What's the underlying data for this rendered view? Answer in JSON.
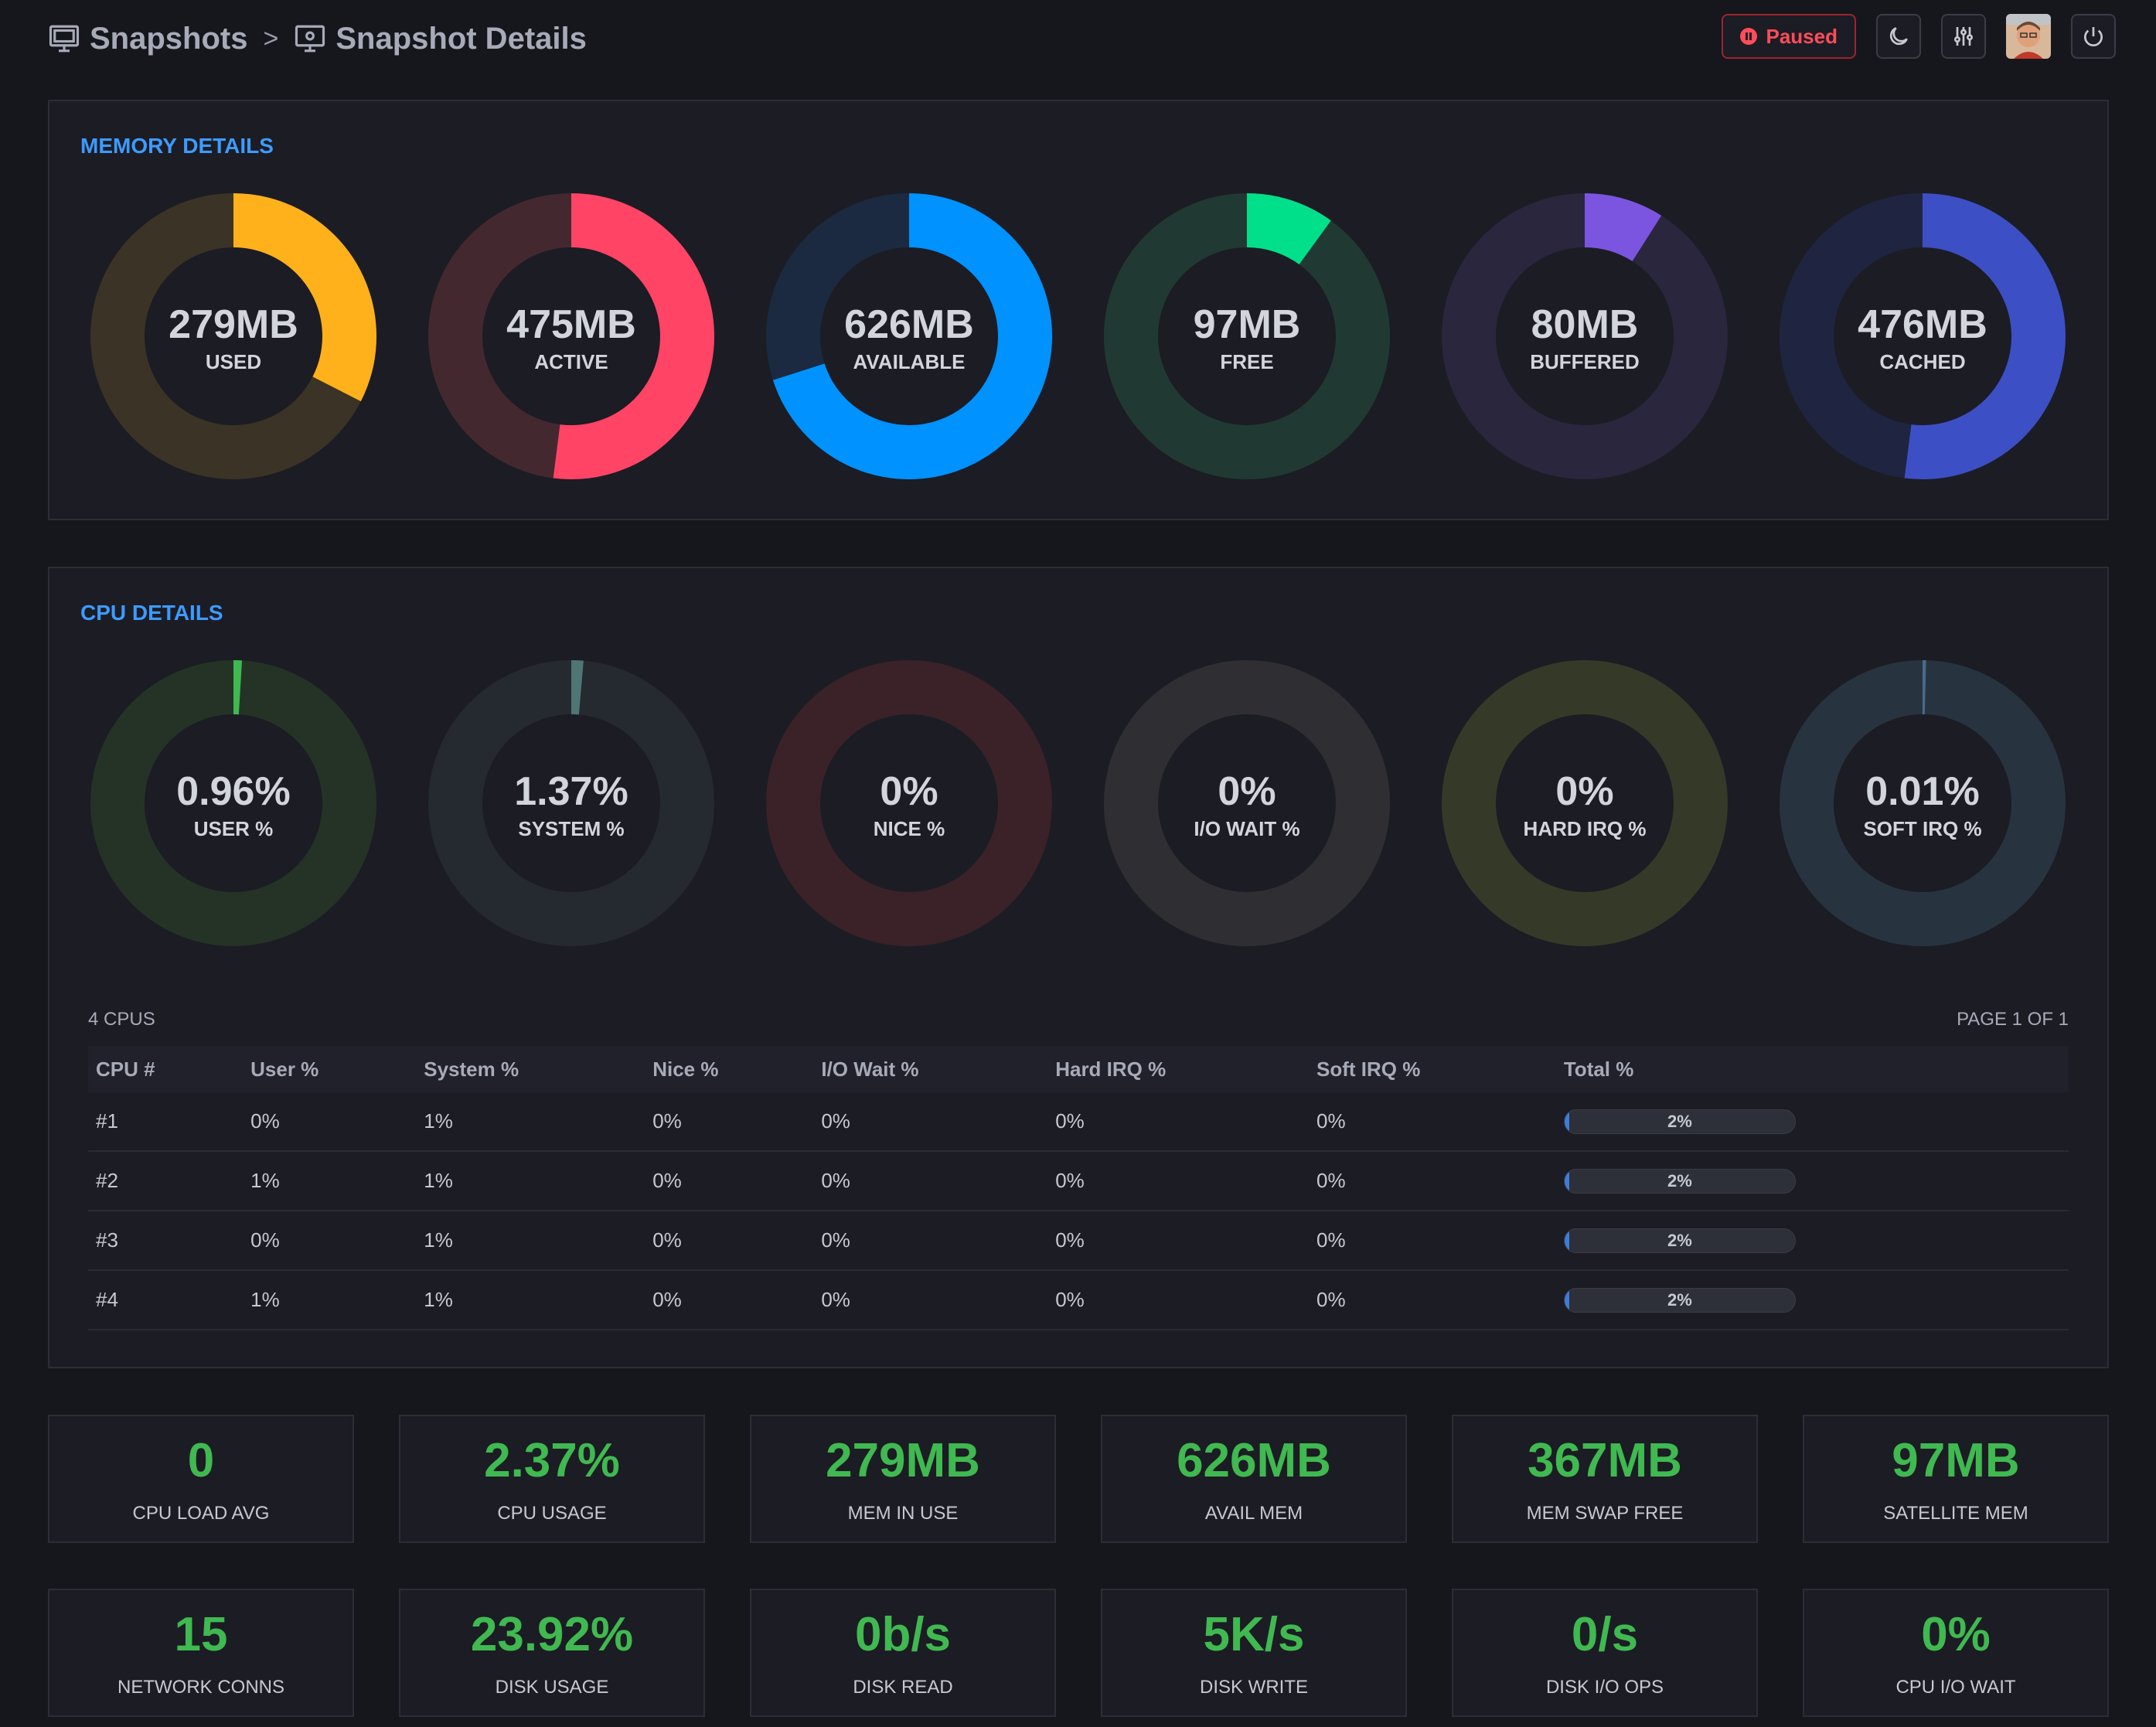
{
  "breadcrumb": {
    "root": "Snapshots",
    "separator": ">",
    "current": "Snapshot Details"
  },
  "header": {
    "status_label": "Paused",
    "icons": [
      "pause-circle-icon",
      "moon-icon",
      "sliders-icon",
      "power-icon"
    ]
  },
  "memory": {
    "title": "MEMORY DETAILS",
    "gauges": [
      {
        "value": "279MB",
        "label": "USED",
        "fraction": 0.325,
        "color": "#ffb11b",
        "track": "#3b3325"
      },
      {
        "value": "475MB",
        "label": "ACTIVE",
        "fraction": 0.52,
        "color": "#ff4466",
        "track": "#442830"
      },
      {
        "value": "626MB",
        "label": "AVAILABLE",
        "fraction": 0.7,
        "color": "#0092ff",
        "track": "#1b2a40"
      },
      {
        "value": "97MB",
        "label": "FREE",
        "fraction": 0.1,
        "color": "#00e08a",
        "track": "#203a33"
      },
      {
        "value": "80MB",
        "label": "BUFFERED",
        "fraction": 0.09,
        "color": "#7b55e0",
        "track": "#2a263d"
      },
      {
        "value": "476MB",
        "label": "CACHED",
        "fraction": 0.52,
        "color": "#3d4fc4",
        "track": "#1f2540"
      }
    ]
  },
  "cpu": {
    "title": "CPU DETAILS",
    "gauges": [
      {
        "value": "0.96%",
        "label": "USER %",
        "fraction": 0.0096,
        "color": "#3fb950",
        "track": "#243326"
      },
      {
        "value": "1.37%",
        "label": "SYSTEM %",
        "fraction": 0.0137,
        "color": "#4f7575",
        "track": "#252a30"
      },
      {
        "value": "0%",
        "label": "NICE %",
        "fraction": 0,
        "color": "#a33",
        "track": "#3a2228"
      },
      {
        "value": "0%",
        "label": "I/O WAIT %",
        "fraction": 0,
        "color": "#888",
        "track": "#2f2f33"
      },
      {
        "value": "0%",
        "label": "HARD IRQ %",
        "fraction": 0,
        "color": "#8a3",
        "track": "#353a28"
      },
      {
        "value": "0.01%",
        "label": "SOFT IRQ %",
        "fraction": 0.0001,
        "color": "#4a6a8a",
        "track": "#27343f"
      }
    ],
    "table": {
      "count_label": "4 CPUS",
      "page_label": "PAGE 1 OF 1",
      "headers": [
        "CPU #",
        "User %",
        "System %",
        "Nice %",
        "I/O Wait %",
        "Hard IRQ %",
        "Soft IRQ %",
        "Total %"
      ],
      "rows": [
        {
          "cpu": "#1",
          "user": "0%",
          "system": "1%",
          "nice": "0%",
          "iowait": "0%",
          "hardirq": "0%",
          "softirq": "0%",
          "total": "2%",
          "total_fraction": 0.02
        },
        {
          "cpu": "#2",
          "user": "1%",
          "system": "1%",
          "nice": "0%",
          "iowait": "0%",
          "hardirq": "0%",
          "softirq": "0%",
          "total": "2%",
          "total_fraction": 0.02
        },
        {
          "cpu": "#3",
          "user": "0%",
          "system": "1%",
          "nice": "0%",
          "iowait": "0%",
          "hardirq": "0%",
          "softirq": "0%",
          "total": "2%",
          "total_fraction": 0.02
        },
        {
          "cpu": "#4",
          "user": "1%",
          "system": "1%",
          "nice": "0%",
          "iowait": "0%",
          "hardirq": "0%",
          "softirq": "0%",
          "total": "2%",
          "total_fraction": 0.02
        }
      ]
    }
  },
  "stats": [
    {
      "value": "0",
      "label": "CPU LOAD AVG"
    },
    {
      "value": "2.37%",
      "label": "CPU USAGE"
    },
    {
      "value": "279MB",
      "label": "MEM IN USE"
    },
    {
      "value": "626MB",
      "label": "AVAIL MEM"
    },
    {
      "value": "367MB",
      "label": "MEM SWAP FREE"
    },
    {
      "value": "97MB",
      "label": "SATELLITE MEM"
    },
    {
      "value": "15",
      "label": "NETWORK CONNS"
    },
    {
      "value": "23.92%",
      "label": "DISK USAGE"
    },
    {
      "value": "0b/s",
      "label": "DISK READ"
    },
    {
      "value": "5K/s",
      "label": "DISK WRITE"
    },
    {
      "value": "0/s",
      "label": "DISK I/O OPS"
    },
    {
      "value": "0%",
      "label": "CPU I/O WAIT"
    }
  ]
}
